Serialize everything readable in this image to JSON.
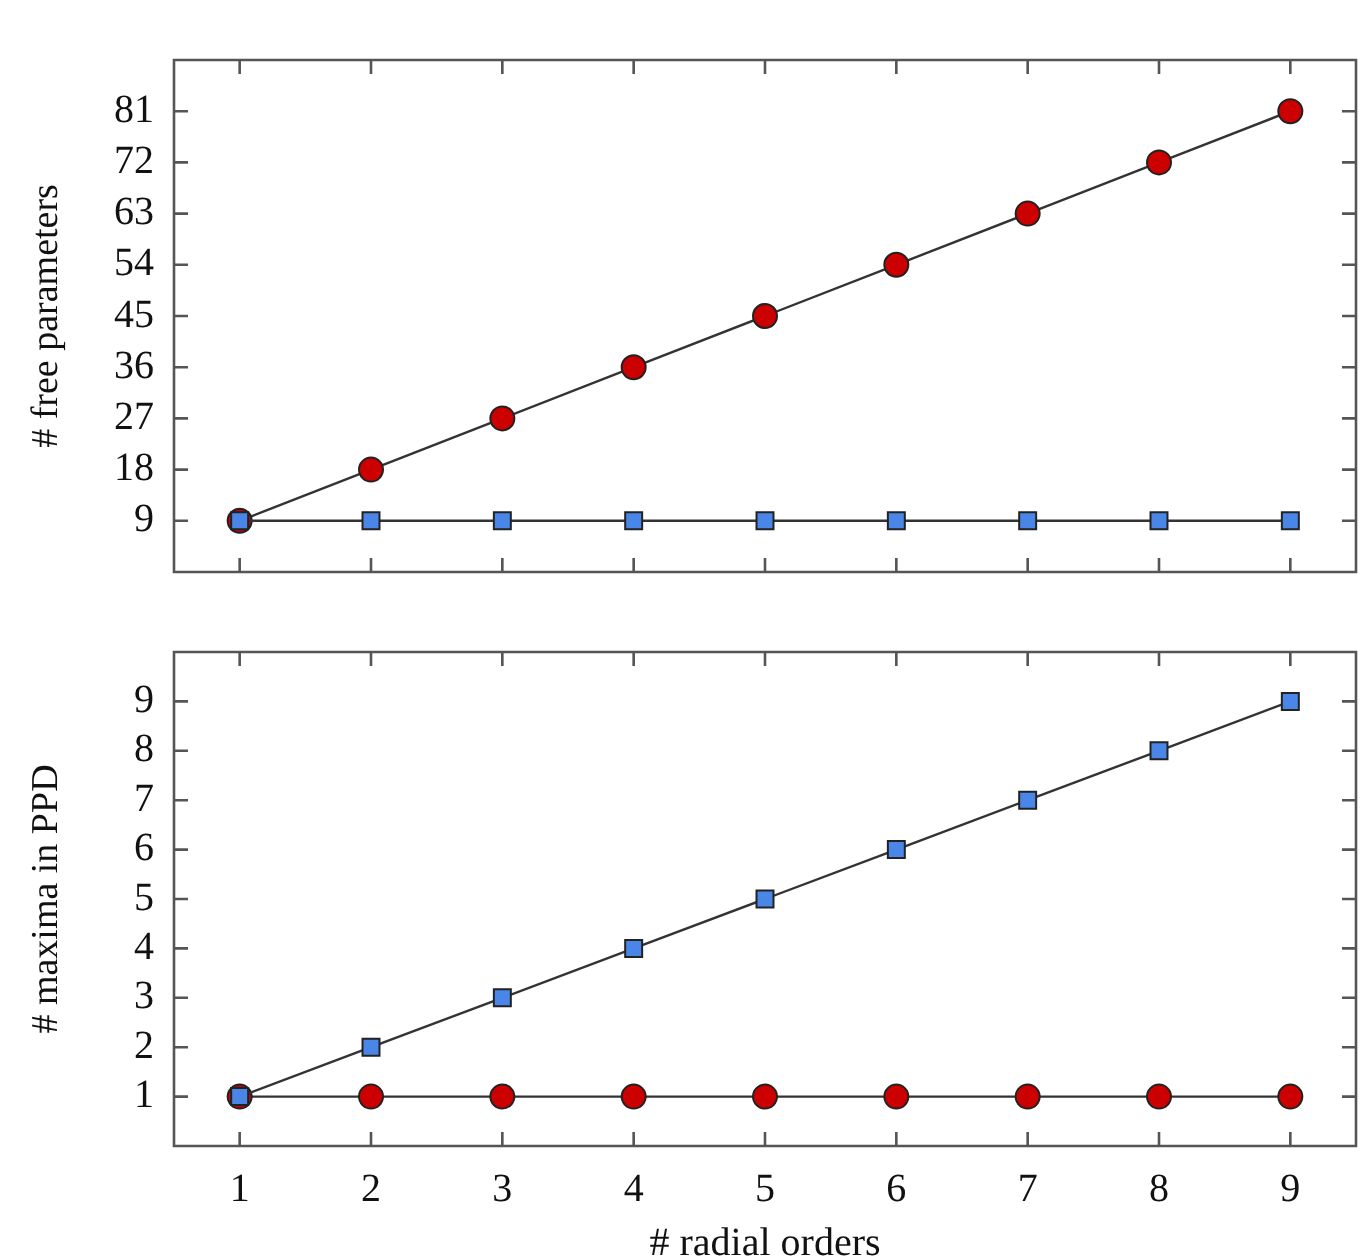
{
  "chart_data": [
    {
      "type": "line",
      "ylabel": "# free parameters",
      "x": [
        1,
        2,
        3,
        4,
        5,
        6,
        7,
        8,
        9
      ],
      "xlim": [
        0.5,
        9.5
      ],
      "xticks": [
        1,
        2,
        3,
        4,
        5,
        6,
        7,
        8,
        9
      ],
      "ylim": [
        0,
        90
      ],
      "yticks": [
        9,
        18,
        27,
        36,
        45,
        54,
        63,
        72,
        81
      ],
      "tick_labels": "y",
      "grid": false,
      "legend": false,
      "series": [
        {
          "color": "#cc0000",
          "marker": "circle",
          "values": [
            9,
            18,
            27,
            36,
            45,
            54,
            63,
            72,
            81
          ]
        },
        {
          "color": "#4a86e8",
          "marker": "square",
          "values": [
            9,
            9,
            9,
            9,
            9,
            9,
            9,
            9,
            9
          ]
        }
      ]
    },
    {
      "type": "line",
      "xlabel": "# radial orders",
      "ylabel": "# maxima in PPD",
      "x": [
        1,
        2,
        3,
        4,
        5,
        6,
        7,
        8,
        9
      ],
      "xlim": [
        0.5,
        9.5
      ],
      "xticks": [
        1,
        2,
        3,
        4,
        5,
        6,
        7,
        8,
        9
      ],
      "ylim": [
        0,
        10
      ],
      "yticks": [
        1,
        2,
        3,
        4,
        5,
        6,
        7,
        8,
        9
      ],
      "grid": false,
      "legend": false,
      "series": [
        {
          "color": "#cc0000",
          "marker": "circle",
          "values": [
            1,
            1,
            1,
            1,
            1,
            1,
            1,
            1,
            1
          ]
        },
        {
          "color": "#4a86e8",
          "marker": "square",
          "values": [
            1,
            2,
            3,
            4,
            5,
            6,
            7,
            8,
            9
          ]
        }
      ]
    }
  ]
}
